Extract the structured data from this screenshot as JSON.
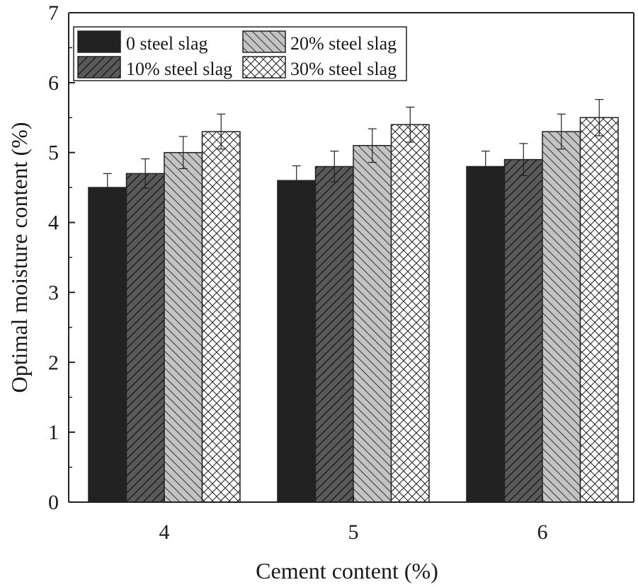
{
  "chart_data": {
    "type": "bar",
    "title": "",
    "xlabel": "Cement content (%)",
    "ylabel": "Optimal moisture content (%)",
    "categories": [
      "4",
      "5",
      "6"
    ],
    "ylim": [
      0,
      7
    ],
    "yticks": [
      "0",
      "1",
      "2",
      "3",
      "4",
      "5",
      "6",
      "7"
    ],
    "grid": false,
    "legend_position": "top-left",
    "series": [
      {
        "name": "0 steel slag",
        "fill": "#222222",
        "pattern": "solid",
        "values": [
          4.5,
          4.6,
          4.8
        ],
        "errors": [
          0.2,
          0.21,
          0.22
        ]
      },
      {
        "name": "10% steel slag",
        "fill": "#5a5a5a",
        "pattern": "diagonal",
        "values": [
          4.7,
          4.8,
          4.9
        ],
        "errors": [
          0.21,
          0.22,
          0.23
        ]
      },
      {
        "name": "20% steel slag",
        "fill": "#c4c4c4",
        "pattern": "back-diagonal",
        "values": [
          5.0,
          5.1,
          5.3
        ],
        "errors": [
          0.23,
          0.24,
          0.25
        ]
      },
      {
        "name": "30% steel slag",
        "fill": "#ffffff",
        "pattern": "crosshatch",
        "values": [
          5.3,
          5.4,
          5.5
        ],
        "errors": [
          0.25,
          0.25,
          0.26
        ]
      }
    ]
  }
}
